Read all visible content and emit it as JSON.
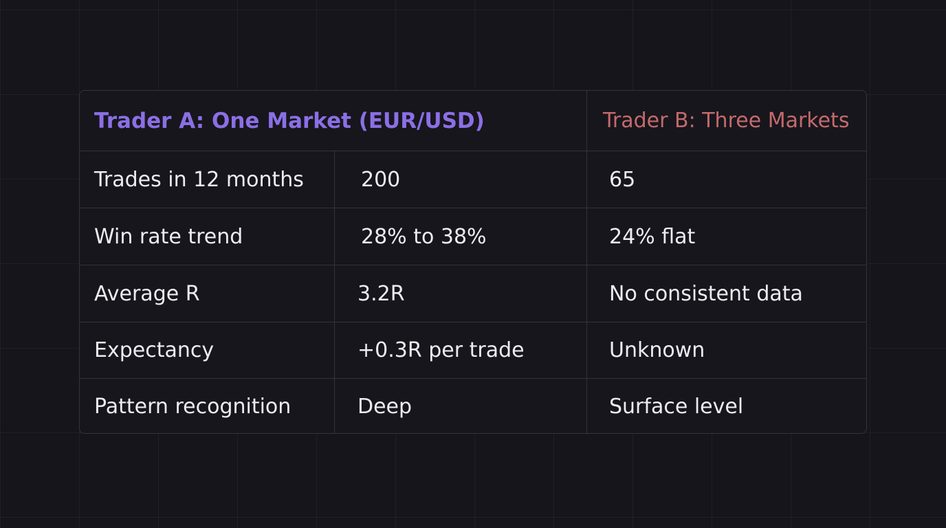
{
  "header": {
    "trader_a": "Trader A: One Market (EUR/USD)",
    "trader_b": "Trader B: Three Markets"
  },
  "rows": [
    {
      "label": "Trades in 12 months",
      "a": "200",
      "b": "65"
    },
    {
      "label": "Win rate trend",
      "a": "28% to 38%",
      "b": "24% flat"
    },
    {
      "label": "Average R",
      "a": "3.2R",
      "b": "No consistent data"
    },
    {
      "label": "Expectancy",
      "a": "+0.3R per trade",
      "b": "Unknown"
    },
    {
      "label": "Pattern recognition",
      "a": "Deep",
      "b": "Surface level"
    }
  ],
  "colors": {
    "background": "#16151b",
    "trader_a_accent": "#8b6fe6",
    "trader_b_accent": "#c46a6c",
    "text": "#ececf1",
    "border": "#34333e"
  }
}
